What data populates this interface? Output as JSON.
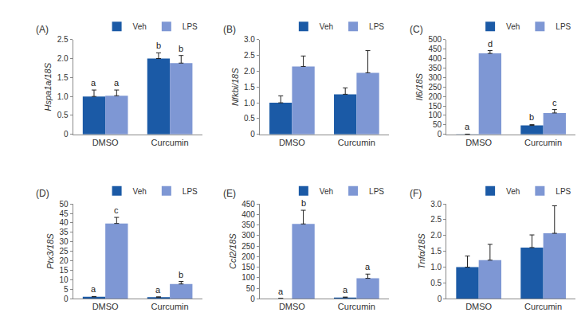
{
  "chart_data": [
    {
      "type": "bar",
      "title": "(A)",
      "y_label": "Hspa1a/18S",
      "categories": [
        "DMSO",
        "Curcumin"
      ],
      "series": [
        {
          "name": "Veh",
          "color": "#1b5aa6",
          "values": [
            1.0,
            2.0
          ],
          "errors": [
            0.17,
            0.15
          ],
          "letters": [
            "a",
            "b"
          ]
        },
        {
          "name": "LPS",
          "color": "#7e97d4",
          "values": [
            1.02,
            1.88
          ],
          "errors": [
            0.15,
            0.2
          ],
          "letters": [
            "a",
            "b"
          ]
        }
      ],
      "ylim": [
        0,
        2.5
      ],
      "yticks": [
        0,
        0.5,
        {
          "value": 1,
          "label": "1.0"
        },
        1.5,
        {
          "value": 2,
          "label": "2.0"
        },
        2.5
      ],
      "grid": false,
      "legend": "top"
    },
    {
      "type": "bar",
      "title": "(B)",
      "y_label": "Nfkbi/18S",
      "categories": [
        "DMSO",
        "Curcumin"
      ],
      "series": [
        {
          "name": "Veh",
          "color": "#1b5aa6",
          "values": [
            1.0,
            1.27
          ],
          "errors": [
            0.22,
            0.2
          ]
        },
        {
          "name": "LPS",
          "color": "#7e97d4",
          "values": [
            2.15,
            1.95
          ],
          "errors": [
            0.33,
            0.7
          ]
        }
      ],
      "ylim": [
        0,
        3
      ],
      "yticks": [
        0,
        0.5,
        {
          "value": 1,
          "label": "1.0"
        },
        1.5,
        {
          "value": 2,
          "label": "2.0"
        },
        2.5,
        {
          "value": 3,
          "label": "3.0"
        }
      ],
      "grid": false,
      "legend": "top"
    },
    {
      "type": "bar",
      "title": "(C)",
      "y_label": "Il6/18S",
      "categories": [
        "DMSO",
        "Curcumin"
      ],
      "series": [
        {
          "name": "Veh",
          "color": "#1b5aa6",
          "values": [
            1,
            47
          ],
          "errors": [
            0.5,
            5
          ],
          "letters": [
            "a",
            "b"
          ]
        },
        {
          "name": "LPS",
          "color": "#7e97d4",
          "values": [
            427,
            113
          ],
          "errors": [
            15,
            18
          ],
          "letters": [
            "d",
            "c"
          ]
        }
      ],
      "ylim": [
        0,
        500
      ],
      "yticks": [
        0,
        50,
        100,
        150,
        200,
        250,
        300,
        350,
        400,
        450,
        500
      ],
      "grid": false,
      "legend": "top"
    },
    {
      "type": "bar",
      "title": "(D)",
      "y_label": "Ptx3/18S",
      "categories": [
        "DMSO",
        "Curcumin"
      ],
      "series": [
        {
          "name": "Veh",
          "color": "#1b5aa6",
          "values": [
            1,
            0.8
          ],
          "errors": [
            0.2,
            0.2
          ],
          "letters": [
            "a",
            "a"
          ]
        },
        {
          "name": "LPS",
          "color": "#7e97d4",
          "values": [
            39.7,
            7.8
          ],
          "errors": [
            3.2,
            1.3
          ],
          "letters": [
            "c",
            "b"
          ]
        }
      ],
      "ylim": [
        0,
        50
      ],
      "yticks": [
        0,
        5,
        10,
        15,
        20,
        25,
        30,
        35,
        40,
        45,
        50
      ],
      "grid": false,
      "legend": "top"
    },
    {
      "type": "bar",
      "title": "(E)",
      "y_label": "Ccl2/18S",
      "categories": [
        "DMSO",
        "Curcumin"
      ],
      "series": [
        {
          "name": "Veh",
          "color": "#1b5aa6",
          "values": [
            1,
            6
          ],
          "errors": [
            0.5,
            2
          ],
          "letters": [
            "a",
            "a"
          ]
        },
        {
          "name": "LPS",
          "color": "#7e97d4",
          "values": [
            355,
            97
          ],
          "errors": [
            65,
            20
          ],
          "letters": [
            "b",
            "a"
          ]
        }
      ],
      "ylim": [
        0,
        450
      ],
      "yticks": [
        0,
        50,
        100,
        150,
        200,
        250,
        300,
        350,
        400,
        450
      ],
      "grid": false,
      "legend": "top"
    },
    {
      "type": "bar",
      "title": "(F)",
      "y_label": "Tnfα/18S",
      "categories": [
        "DMSO",
        "Curcumin"
      ],
      "series": [
        {
          "name": "Veh",
          "color": "#1b5aa6",
          "values": [
            1.0,
            1.62
          ],
          "errors": [
            0.35,
            0.4
          ]
        },
        {
          "name": "LPS",
          "color": "#7e97d4",
          "values": [
            1.22,
            2.07
          ],
          "errors": [
            0.5,
            0.87
          ]
        }
      ],
      "ylim": [
        0,
        3
      ],
      "yticks": [
        0,
        0.5,
        {
          "value": 1,
          "label": "1.0"
        },
        1.5,
        {
          "value": 2,
          "label": "2.0"
        },
        2.5,
        {
          "value": 3,
          "label": "3.0"
        }
      ],
      "grid": false,
      "legend": "top"
    }
  ]
}
